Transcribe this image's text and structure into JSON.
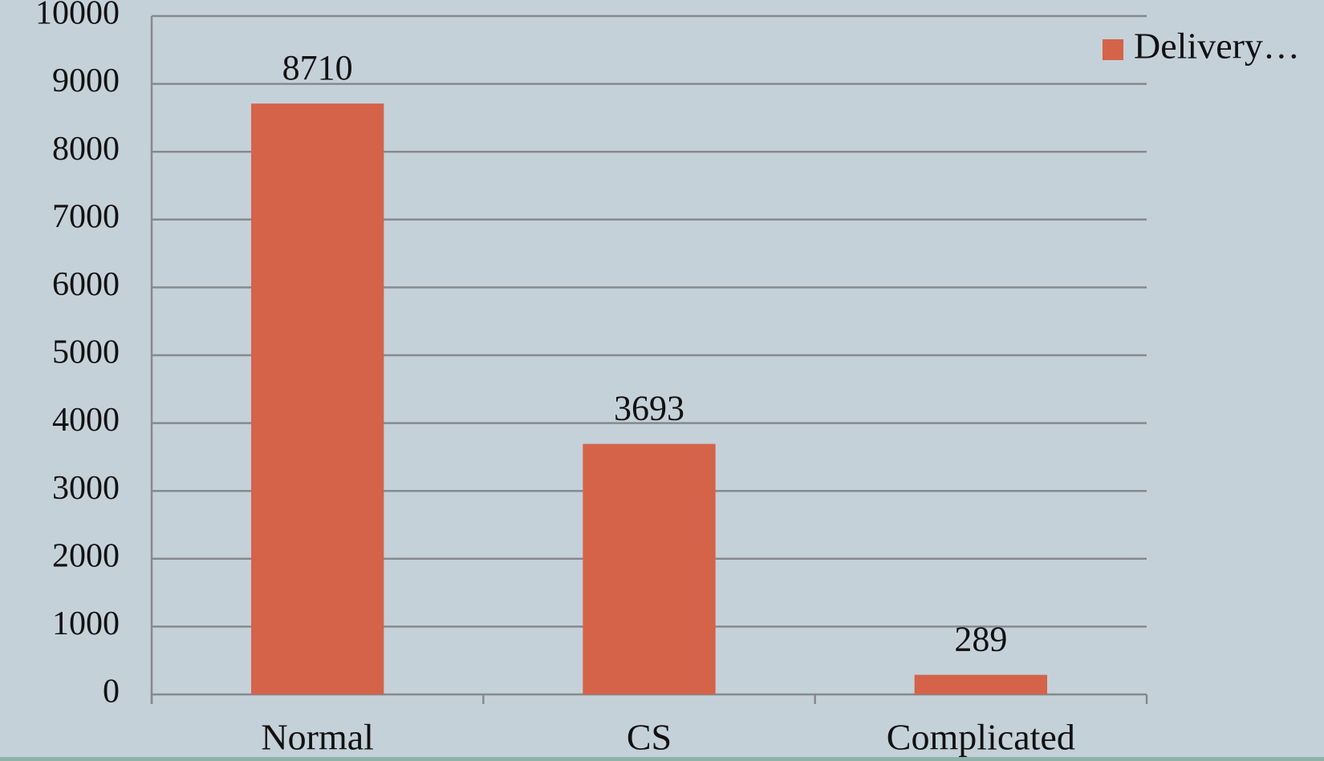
{
  "chart_data": {
    "type": "bar",
    "categories": [
      "Normal",
      "CS",
      "Complicated"
    ],
    "series": [
      {
        "name": "Delivery…",
        "color": "#d4634a",
        "values": [
          8710,
          3693,
          289
        ]
      }
    ],
    "ylim": [
      0,
      10000
    ],
    "yticks": [
      0,
      1000,
      2000,
      3000,
      4000,
      5000,
      6000,
      7000,
      8000,
      9000,
      10000
    ],
    "grid": true,
    "legend": "top-right"
  }
}
